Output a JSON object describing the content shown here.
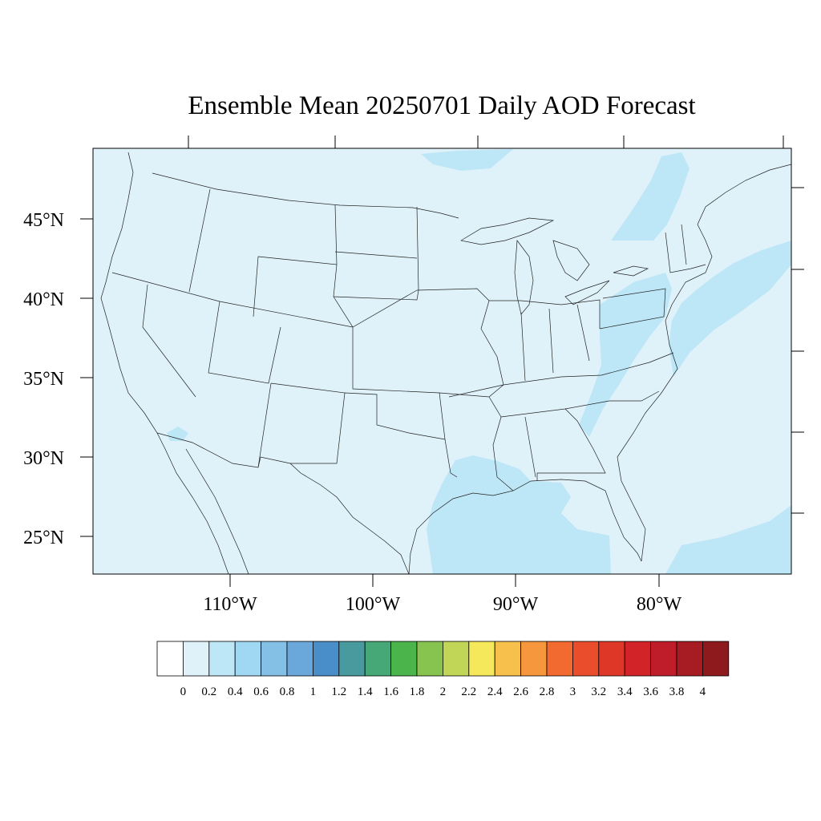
{
  "title": "Ensemble Mean 20250701 Daily AOD Forecast",
  "map": {
    "lat_labels": [
      "45°N",
      "40°N",
      "35°N",
      "30°N",
      "25°N"
    ],
    "lon_labels": [
      "110°W",
      "100°W",
      "90°W",
      "80°W"
    ],
    "land_fill": "#dff2fa",
    "elevated_fill": "#bde6f7",
    "elevated_regions": [
      "Gulf of Mexico coastal waters",
      "Western Atlantic off New England and Mid-Atlantic",
      "Appalachians and Pennsylvania / New York",
      "Southern Canada near Hudson Bay",
      "Far southeast corner (Bahamas / Cuba)"
    ]
  },
  "colorbar": {
    "labels": [
      "0",
      "0.2",
      "0.4",
      "0.6",
      "0.8",
      "1",
      "1.2",
      "1.4",
      "1.6",
      "1.8",
      "2",
      "2.2",
      "2.4",
      "2.6",
      "2.8",
      "3",
      "3.2",
      "3.4",
      "3.6",
      "3.8",
      "4"
    ],
    "colors": [
      "#ffffff",
      "#dff2fa",
      "#bde6f7",
      "#a0d8f3",
      "#84bfe6",
      "#6aa8dc",
      "#4a8ec9",
      "#489a9e",
      "#46a876",
      "#4bb44a",
      "#86c44f",
      "#c1d656",
      "#f6e85b",
      "#f7c04c",
      "#f6973e",
      "#f26a30",
      "#ea4d2b",
      "#de3728",
      "#d22329",
      "#bf1d2a",
      "#a71b23",
      "#8e1a1e"
    ]
  }
}
